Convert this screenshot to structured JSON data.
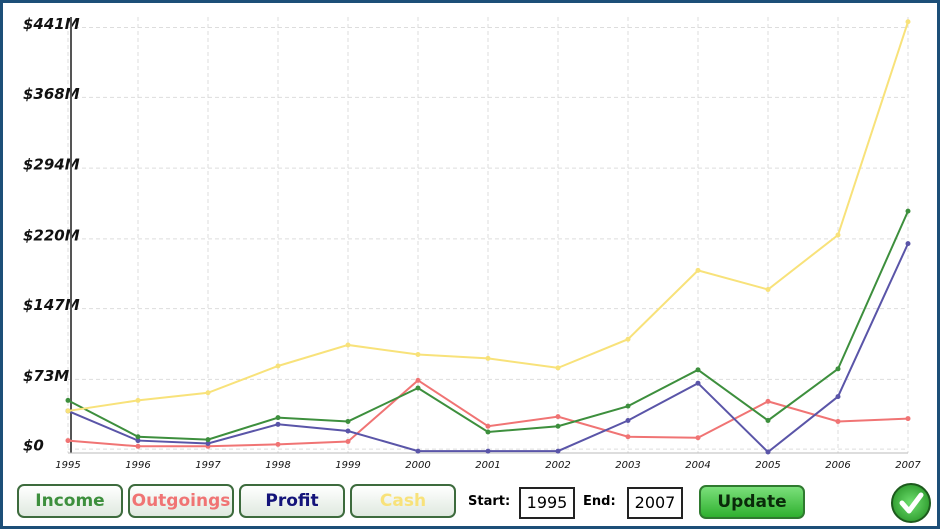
{
  "chart_data": {
    "type": "line",
    "x": [
      1995,
      1996,
      1997,
      1998,
      1999,
      2000,
      2001,
      2002,
      2003,
      2004,
      2005,
      2006,
      2007
    ],
    "xlim": [
      1995,
      2007
    ],
    "xticks": [
      1995,
      1996,
      1997,
      1998,
      1999,
      2000,
      2001,
      2002,
      2003,
      2004,
      2005,
      2006,
      2007
    ],
    "ylim": [
      -4,
      452
    ],
    "yticks": [
      {
        "value": 0,
        "label": "$0"
      },
      {
        "value": 73,
        "label": "$73M"
      },
      {
        "value": 147,
        "label": "$147M"
      },
      {
        "value": 220,
        "label": "$220M"
      },
      {
        "value": 294,
        "label": "$294M"
      },
      {
        "value": 368,
        "label": "$368M"
      },
      {
        "value": 441,
        "label": "$441M"
      }
    ],
    "grid": true,
    "series": [
      {
        "name": "Income",
        "color": "#3d8f3d",
        "values": [
          51,
          13,
          10,
          33,
          29,
          64,
          18,
          24,
          45,
          83,
          30,
          84,
          249
        ]
      },
      {
        "name": "Outgoings",
        "color": "#f07474",
        "values": [
          9,
          3,
          3,
          5,
          8,
          72,
          24,
          34,
          13,
          12,
          50,
          29,
          32
        ]
      },
      {
        "name": "Profit",
        "color": "#5a55a8",
        "values": [
          40,
          9,
          6,
          26,
          19,
          -2,
          -2,
          -2,
          30,
          69,
          -3,
          55,
          215
        ]
      },
      {
        "name": "Cash",
        "color": "#f8e27a",
        "values": [
          40,
          51,
          59,
          87,
          109,
          99,
          95,
          85,
          115,
          187,
          167,
          224,
          447
        ]
      }
    ]
  },
  "controls": {
    "start_label": "Start:",
    "start_value": 1995,
    "end_label": "End:",
    "end_value": 2007,
    "update": "Update"
  }
}
